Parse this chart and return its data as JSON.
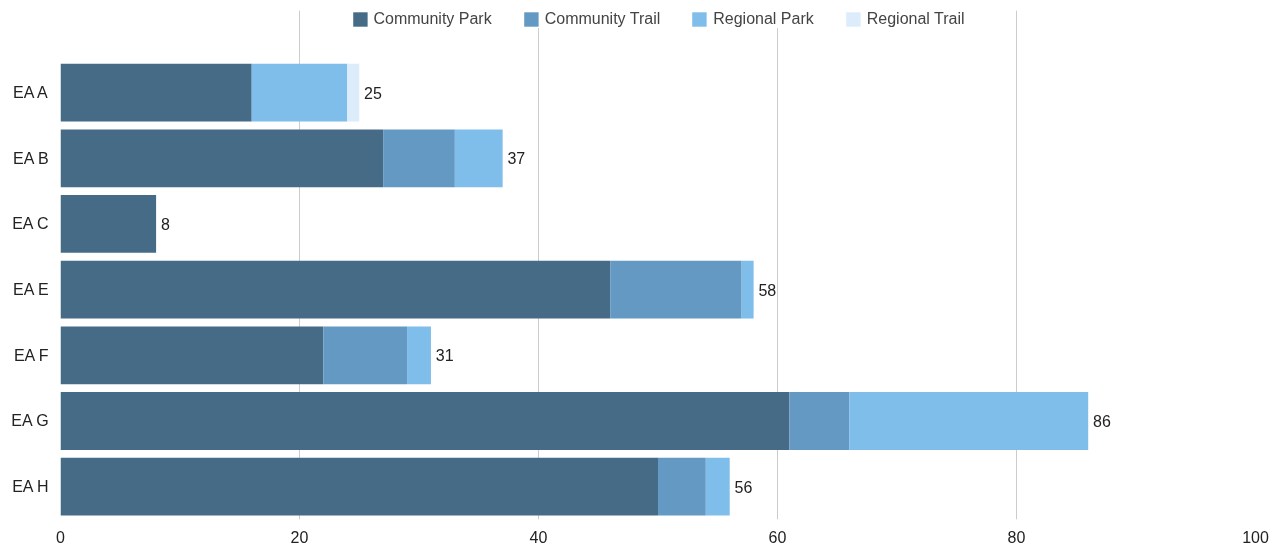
{
  "chart_data": {
    "type": "bar",
    "orientation": "horizontal",
    "stacked": true,
    "categories": [
      "EA A",
      "EA B",
      "EA C",
      "EA E",
      "EA F",
      "EA G",
      "EA H"
    ],
    "series": [
      {
        "name": "Community Park",
        "color": "#466b86",
        "values": [
          16,
          27,
          8,
          46,
          22,
          61,
          50
        ]
      },
      {
        "name": "Community Trail",
        "color": "#6399c2",
        "values": [
          null,
          6,
          null,
          11,
          7,
          5,
          4
        ]
      },
      {
        "name": "Regional Park",
        "color": "#7fbdeb",
        "values": [
          8,
          4,
          null,
          1,
          2,
          20,
          2
        ]
      },
      {
        "name": "Regional Trail",
        "color": "#dcecfa",
        "values": [
          1,
          null,
          null,
          null,
          null,
          null,
          null
        ]
      }
    ],
    "totals": [
      "25",
      "37",
      "8",
      "58",
      "31",
      "86",
      "56"
    ],
    "xlim": [
      0,
      100
    ],
    "xticks": [
      0,
      20,
      40,
      60,
      80,
      100
    ],
    "grid": "x",
    "legend": "top"
  }
}
